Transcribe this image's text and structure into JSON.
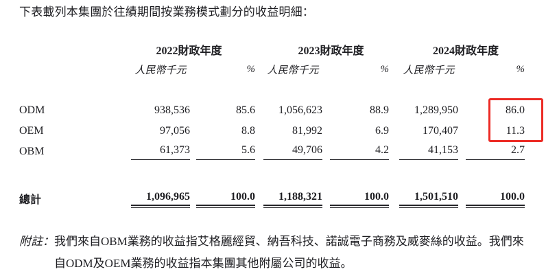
{
  "intro": {
    "text": "下表載列本集團於往績期間按業務模式劃分的收益明細："
  },
  "table": {
    "year_headers": [
      "2022財政年度",
      "2023財政年度",
      "2024財政年度"
    ],
    "subheaders": {
      "amount": "人民幣千元",
      "percent": "%"
    },
    "rows": [
      {
        "label": "ODM",
        "values": [
          "938,536",
          "85.6",
          "1,056,623",
          "88.9",
          "1,289,950",
          "86.0"
        ]
      },
      {
        "label": "OEM",
        "values": [
          "97,056",
          "8.8",
          "81,992",
          "6.9",
          "170,407",
          "11.3"
        ]
      },
      {
        "label": "OBM",
        "values": [
          "61,373",
          "5.6",
          "49,706",
          "4.2",
          "41,153",
          "2.7"
        ]
      }
    ],
    "total": {
      "label": "總計",
      "values": [
        "1,096,965",
        "100.0",
        "1,188,321",
        "100.0",
        "1,501,510",
        "100.0"
      ]
    }
  },
  "highlight": {
    "border_color": "#ec2b25"
  },
  "footnote": {
    "label": "附註：",
    "line1": "我們來自OBM業務的收益指艾格麗經貿、納吾科技、諾誠電子商務及威麥絲的收益。我們來",
    "line2": "自ODM及OEM業務的收益指本集團其他附屬公司的收益。"
  }
}
